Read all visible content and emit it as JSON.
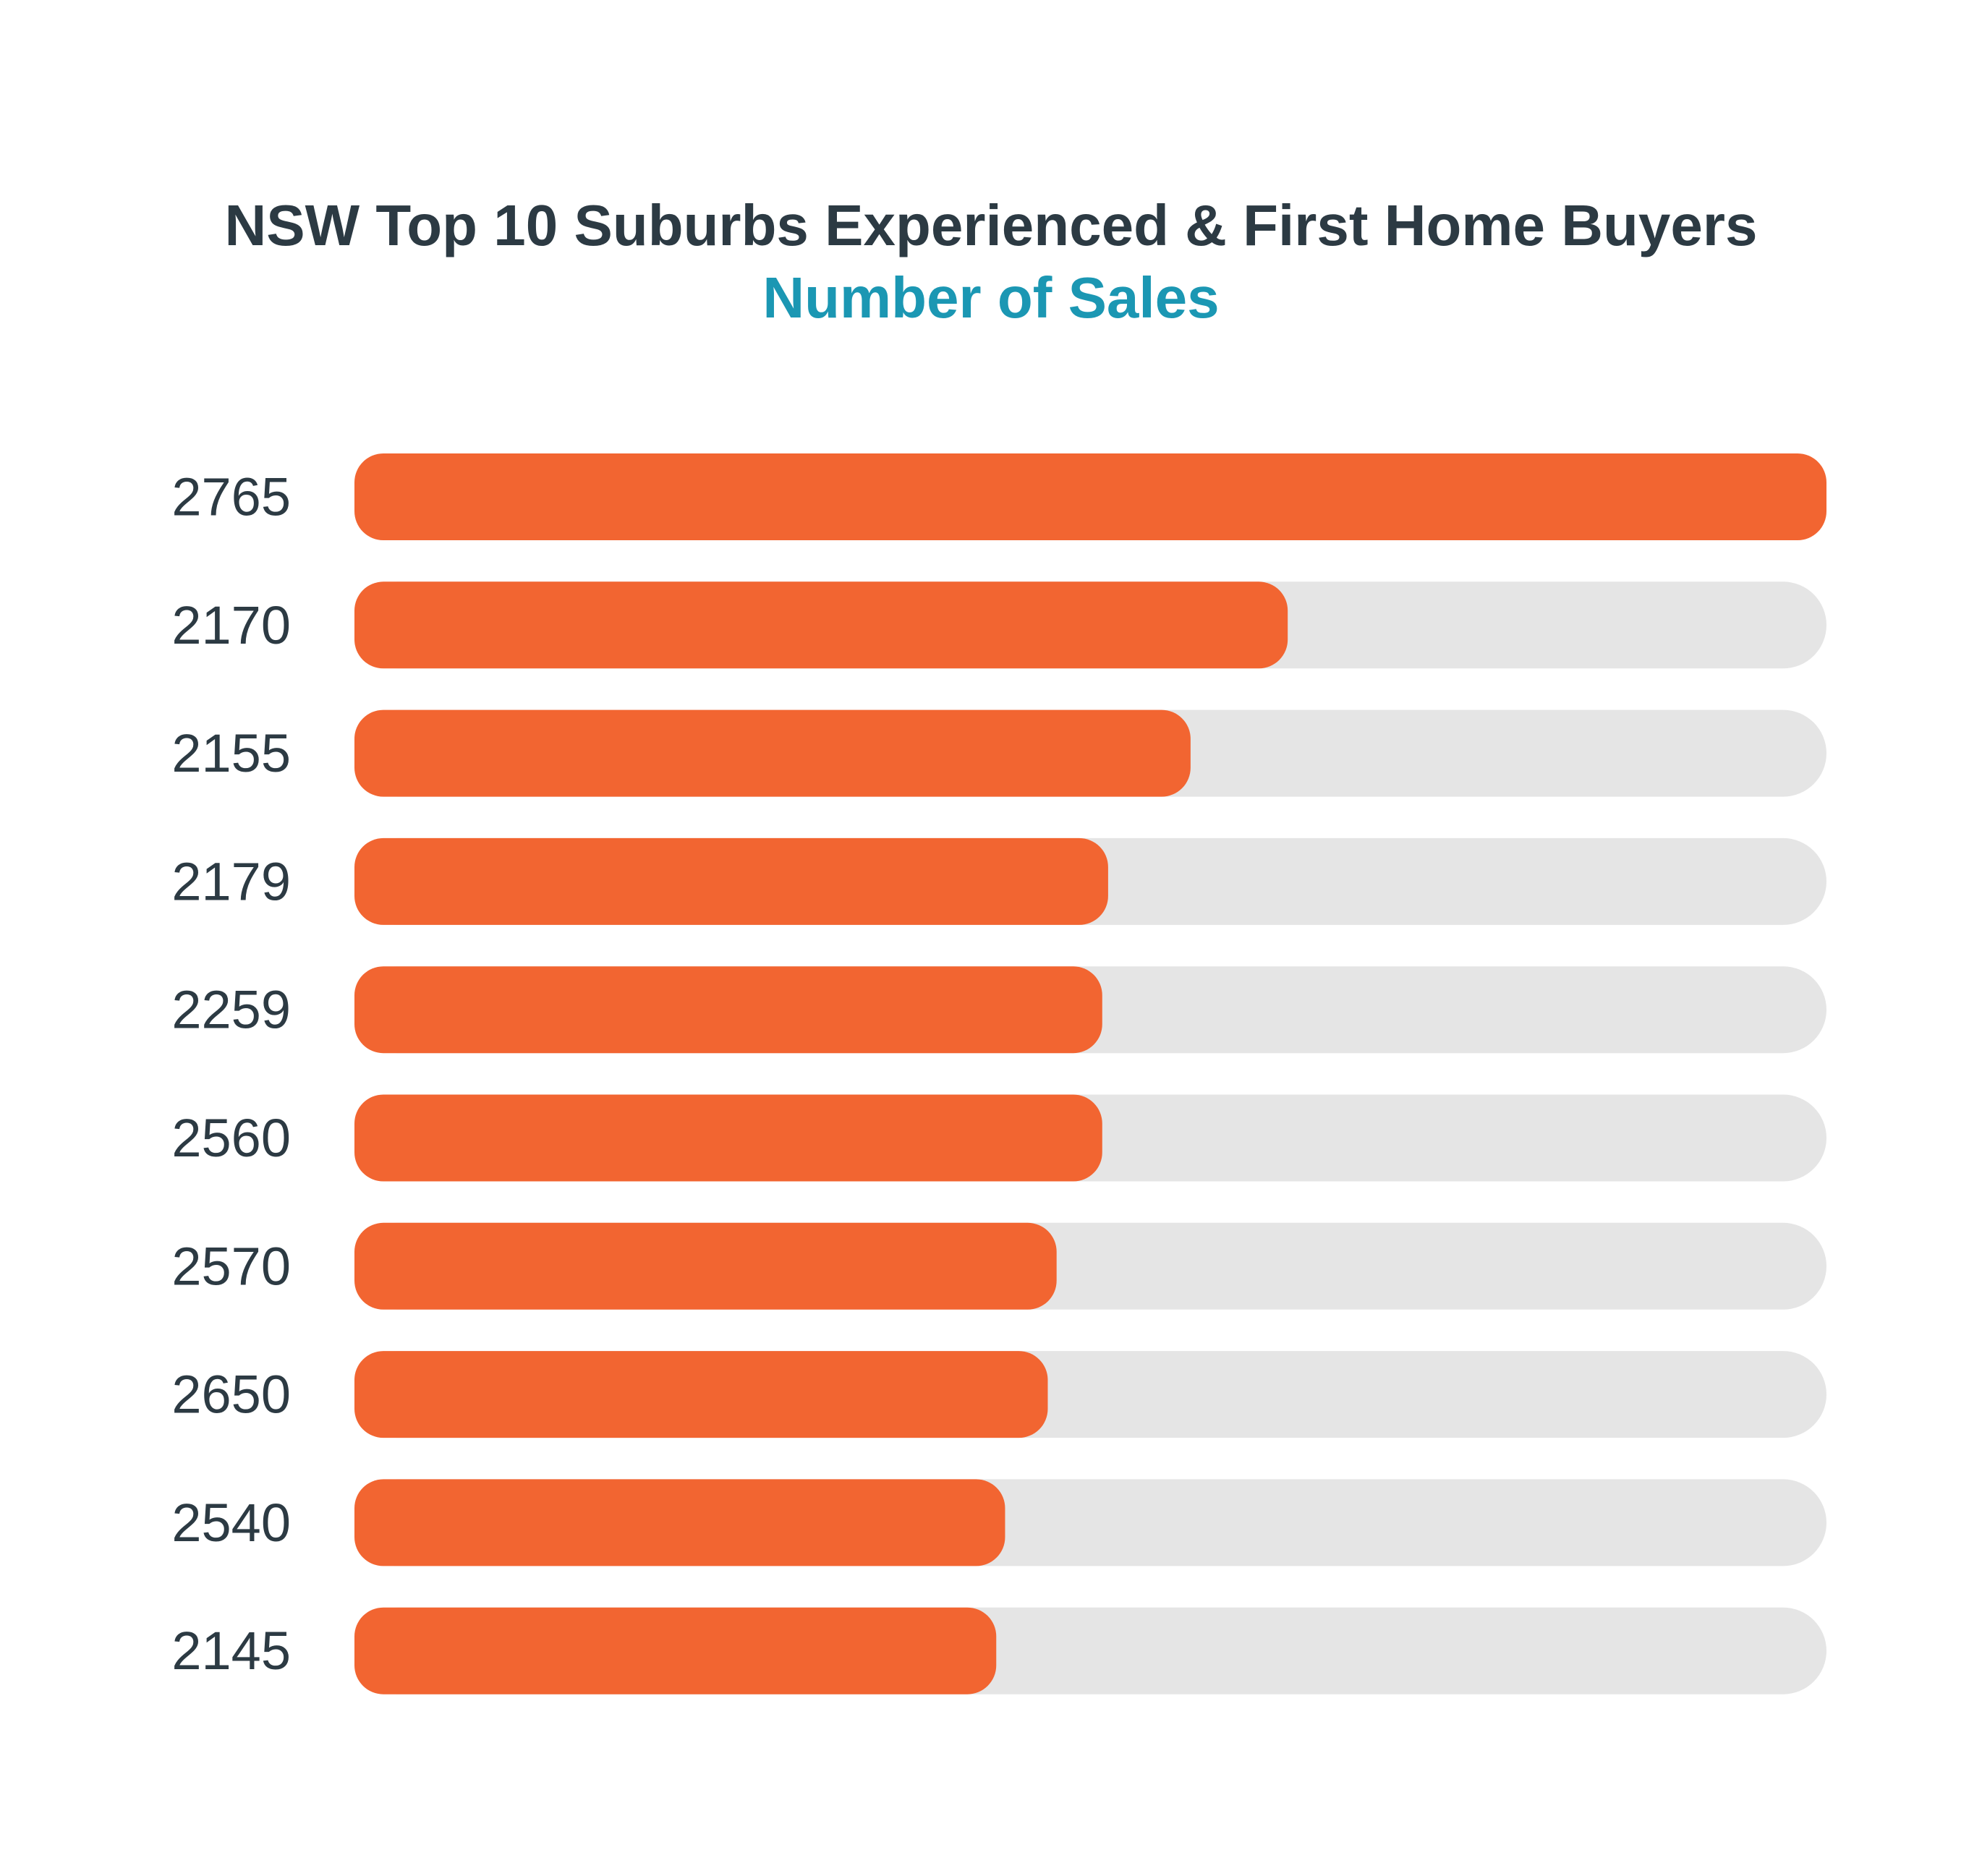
{
  "chart_data": {
    "type": "bar",
    "orientation": "horizontal",
    "title": "NSW Top 10 Suburbs Experienced & First Home Buyers",
    "subtitle": "Number of Sales",
    "categories": [
      "2765",
      "2170",
      "2155",
      "2179",
      "2259",
      "2560",
      "2570",
      "2650",
      "2540",
      "2145"
    ],
    "values": [
      1.0,
      0.634,
      0.568,
      0.512,
      0.508,
      0.508,
      0.477,
      0.471,
      0.442,
      0.436
    ],
    "value_scale": "relative to largest bar",
    "xlim": [
      0,
      1
    ],
    "grid": false,
    "legend": "none",
    "colors": {
      "bar": "#f26531",
      "track": "#e5e5e5",
      "title": "#2c3a43",
      "subtitle": "#1b97b3",
      "label": "#2c3a43"
    }
  }
}
